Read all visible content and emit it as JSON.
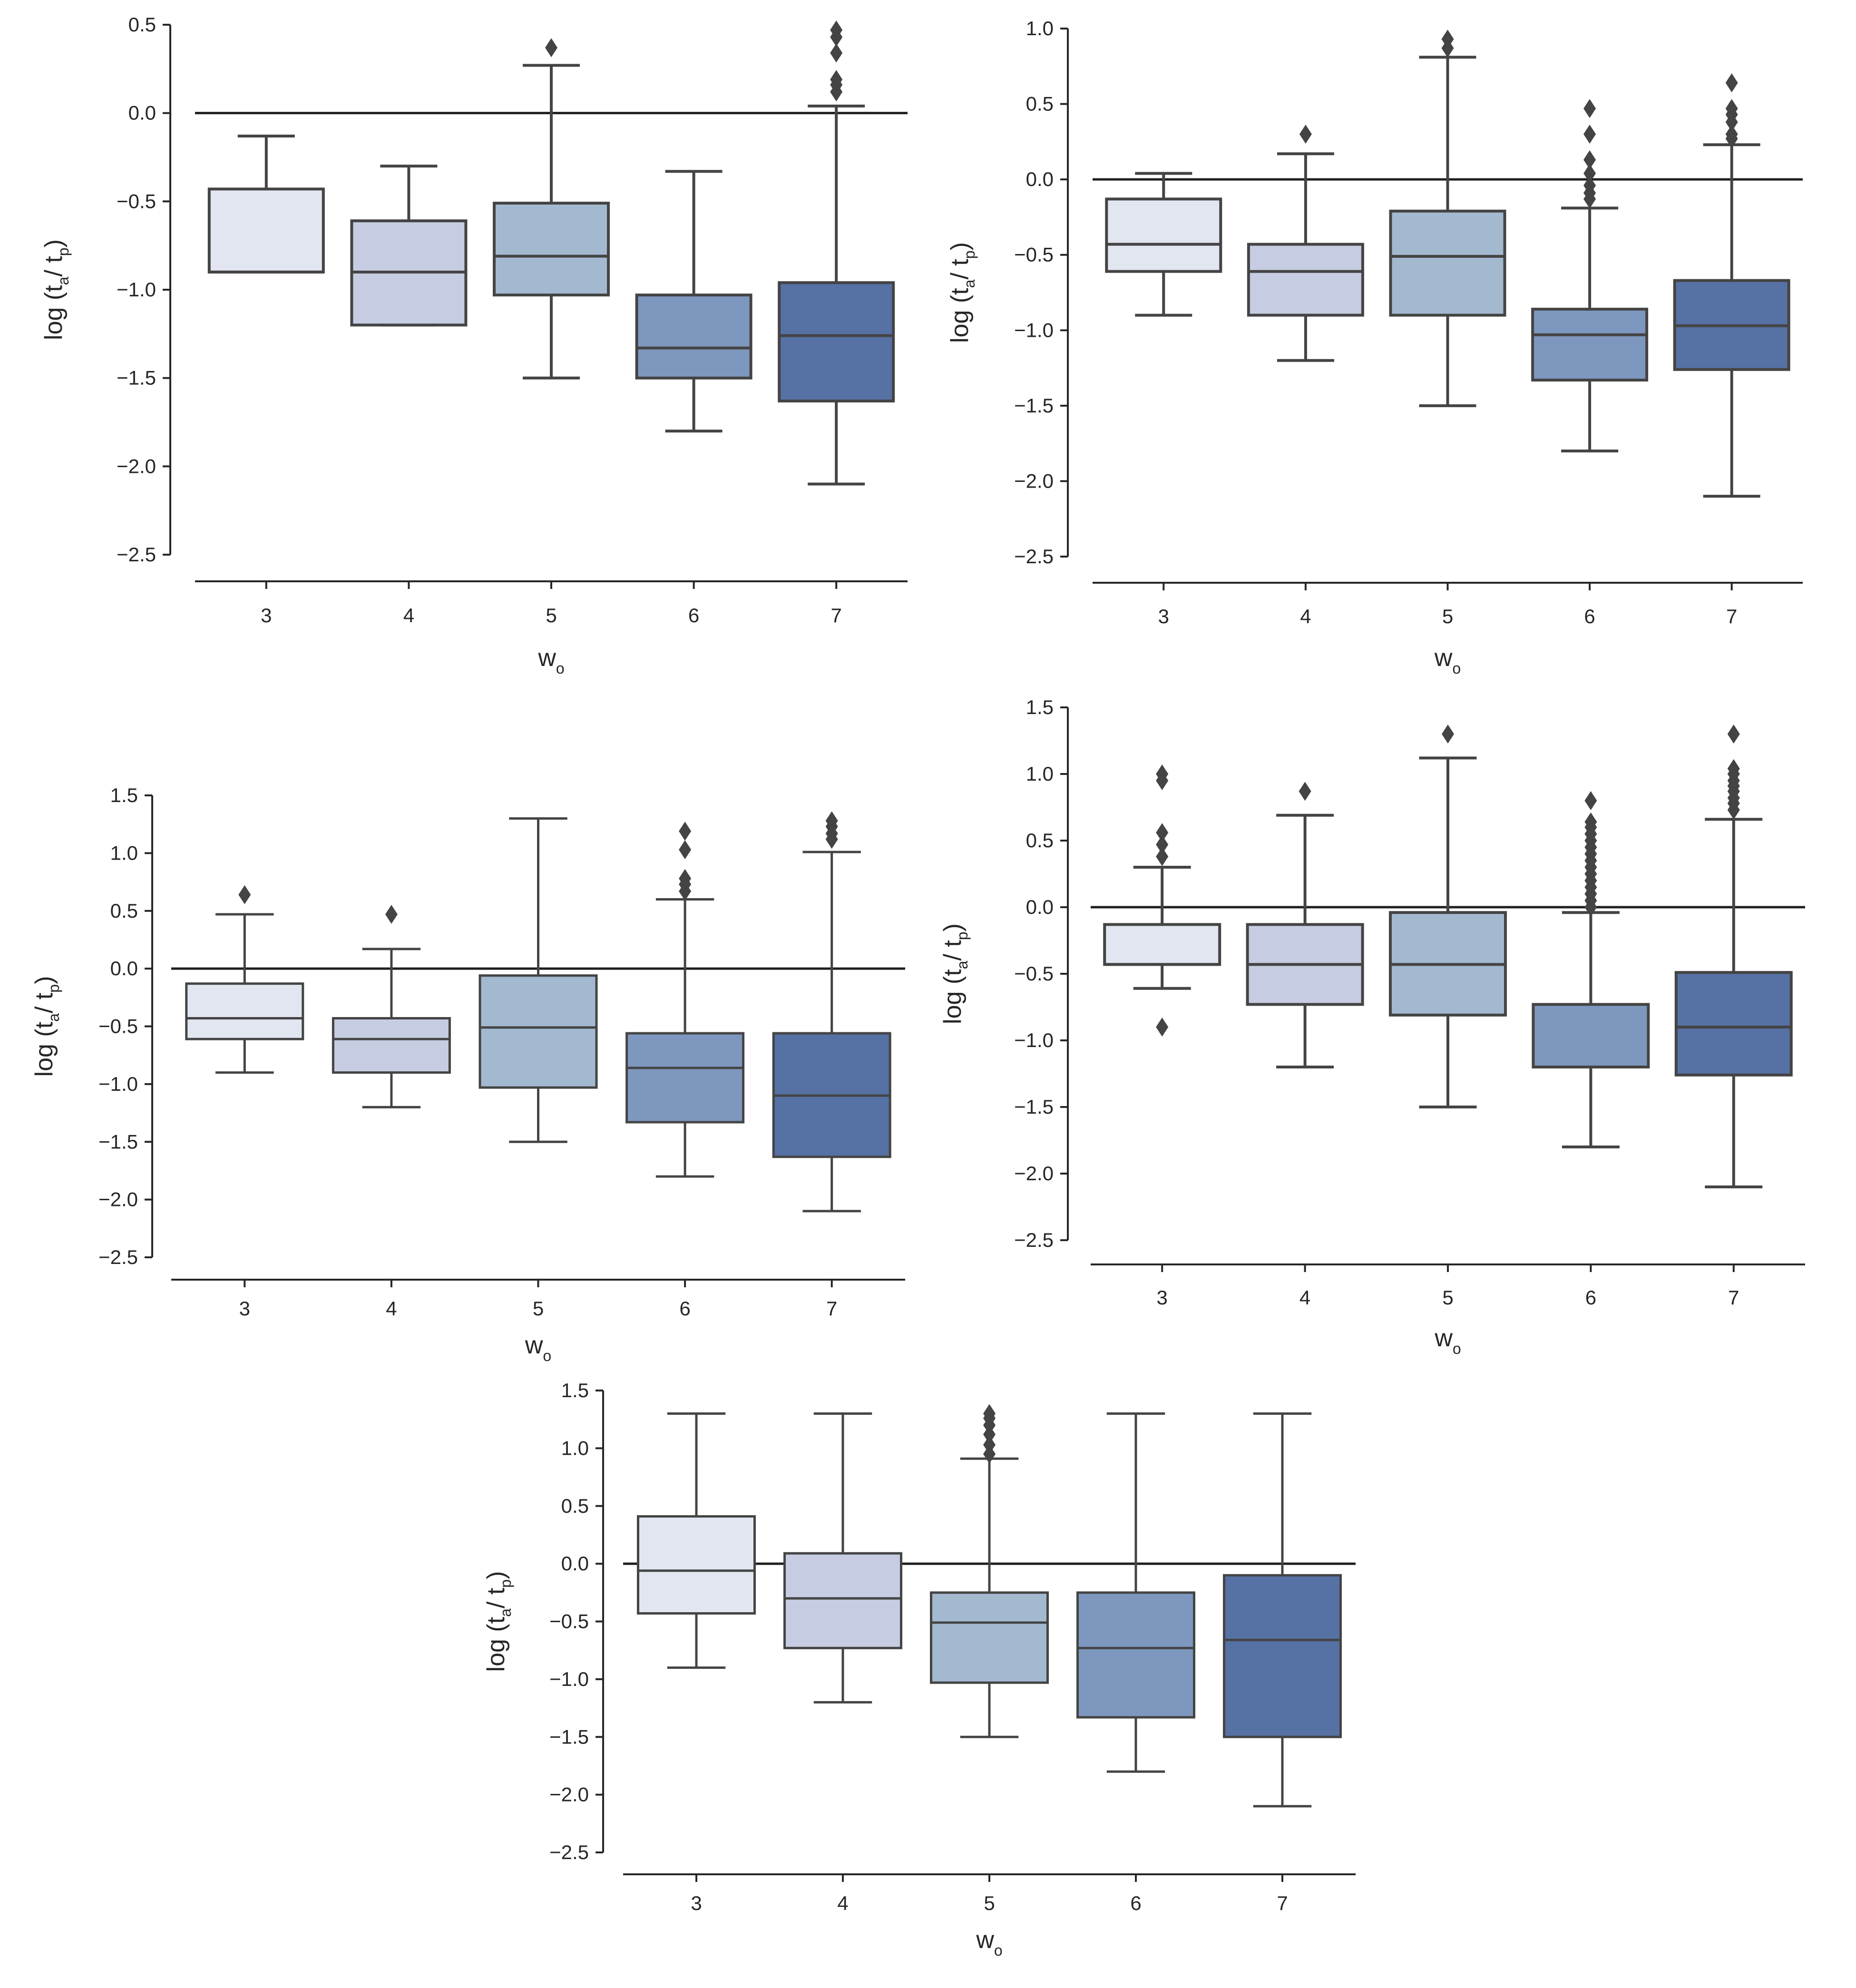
{
  "colors": {
    "boxes": [
      "#e1e6f0",
      "#c6cde2",
      "#a3b9cf",
      "#7e97be",
      "#5671a3"
    ],
    "line": "#444444",
    "outlier": "#444444"
  },
  "chart_data": [
    {
      "type": "box",
      "xlabel": "w",
      "xlabel_sub": "o",
      "ylabel": "log (t",
      "ylabel_sub_a": "a",
      "ylabel_mid": "/ t",
      "ylabel_sub_p": "p",
      "ylabel_end": ")",
      "categories": [
        "3",
        "4",
        "5",
        "6",
        "7"
      ],
      "ylim": [
        -2.5,
        0.5
      ],
      "yticks": [
        0.5,
        0.0,
        -0.5,
        -1.0,
        -1.5,
        -2.0,
        -2.5
      ],
      "ytick_labels": [
        "0.5",
        "0.0",
        "−0.5",
        "−1.0",
        "−1.5",
        "−2.0",
        "−2.5"
      ],
      "reference_line": 0.0,
      "boxes": [
        {
          "category": "3",
          "whislo": -0.9,
          "q1": -0.9,
          "med": -0.9,
          "q3": -0.43,
          "whishi": -0.13,
          "outliers": []
        },
        {
          "category": "4",
          "whislo": -1.2,
          "q1": -1.2,
          "med": -0.9,
          "q3": -0.61,
          "whishi": -0.3,
          "outliers": []
        },
        {
          "category": "5",
          "whislo": -1.5,
          "q1": -1.03,
          "med": -0.81,
          "q3": -0.51,
          "whishi": 0.27,
          "outliers": [
            0.37
          ]
        },
        {
          "category": "6",
          "whislo": -1.8,
          "q1": -1.5,
          "med": -1.33,
          "q3": -1.03,
          "whishi": -0.33,
          "outliers": []
        },
        {
          "category": "7",
          "whislo": -2.1,
          "q1": -1.63,
          "med": -1.26,
          "q3": -0.96,
          "whishi": 0.04,
          "outliers": [
            0.12,
            0.16,
            0.19,
            0.34,
            0.43,
            0.47
          ]
        }
      ]
    },
    {
      "type": "box",
      "xlabel": "w",
      "xlabel_sub": "o",
      "ylabel": "log (t",
      "ylabel_sub_a": "a",
      "ylabel_mid": "/ t",
      "ylabel_sub_p": "p",
      "ylabel_end": ")",
      "categories": [
        "3",
        "4",
        "5",
        "6",
        "7"
      ],
      "ylim": [
        -2.5,
        1.0
      ],
      "yticks": [
        1.0,
        0.5,
        0.0,
        -0.5,
        -1.0,
        -1.5,
        -2.0,
        -2.5
      ],
      "ytick_labels": [
        "1.0",
        "0.5",
        "0.0",
        "−0.5",
        "−1.0",
        "−1.5",
        "−2.0",
        "−2.5"
      ],
      "reference_line": 0.0,
      "boxes": [
        {
          "category": "3",
          "whislo": -0.9,
          "q1": -0.61,
          "med": -0.43,
          "q3": -0.13,
          "whishi": 0.04,
          "outliers": []
        },
        {
          "category": "4",
          "whislo": -1.2,
          "q1": -0.9,
          "med": -0.61,
          "q3": -0.43,
          "whishi": 0.17,
          "outliers": [
            0.3
          ]
        },
        {
          "category": "5",
          "whislo": -1.5,
          "q1": -0.9,
          "med": -0.51,
          "q3": -0.21,
          "whishi": 0.81,
          "outliers": [
            0.87,
            0.93
          ]
        },
        {
          "category": "6",
          "whislo": -1.8,
          "q1": -1.33,
          "med": -1.03,
          "q3": -0.86,
          "whishi": -0.19,
          "outliers": [
            -0.13,
            -0.09,
            -0.04,
            0.04,
            0.13,
            0.3,
            0.47
          ]
        },
        {
          "category": "7",
          "whislo": -2.1,
          "q1": -1.26,
          "med": -0.97,
          "q3": -0.67,
          "whishi": 0.23,
          "outliers": [
            0.27,
            0.3,
            0.38,
            0.43,
            0.47,
            0.64
          ]
        }
      ]
    },
    {
      "type": "box",
      "xlabel": "w",
      "xlabel_sub": "o",
      "ylabel": "log (t",
      "ylabel_sub_a": "a",
      "ylabel_mid": "/ t",
      "ylabel_sub_p": "p",
      "ylabel_end": ")",
      "categories": [
        "3",
        "4",
        "5",
        "6",
        "7"
      ],
      "ylim": [
        -2.5,
        1.5
      ],
      "yticks": [
        1.5,
        1.0,
        0.5,
        0.0,
        -0.5,
        -1.0,
        -1.5,
        -2.0,
        -2.5
      ],
      "ytick_labels": [
        "1.5",
        "1.0",
        "0.5",
        "0.0",
        "−0.5",
        "−1.0",
        "−1.5",
        "−2.0",
        "−2.5"
      ],
      "reference_line": 0.0,
      "boxes": [
        {
          "category": "3",
          "whislo": -0.9,
          "q1": -0.61,
          "med": -0.43,
          "q3": -0.13,
          "whishi": 0.47,
          "outliers": [
            0.64
          ]
        },
        {
          "category": "4",
          "whislo": -1.2,
          "q1": -0.9,
          "med": -0.61,
          "q3": -0.43,
          "whishi": 0.17,
          "outliers": [
            0.47
          ]
        },
        {
          "category": "5",
          "whislo": -1.5,
          "q1": -1.03,
          "med": -0.51,
          "q3": -0.06,
          "whishi": 1.3,
          "outliers": []
        },
        {
          "category": "6",
          "whislo": -1.8,
          "q1": -1.33,
          "med": -0.86,
          "q3": -0.56,
          "whishi": 0.6,
          "outliers": [
            0.67,
            0.73,
            0.78,
            1.03,
            1.19
          ]
        },
        {
          "category": "7",
          "whislo": -2.1,
          "q1": -1.63,
          "med": -1.1,
          "q3": -0.56,
          "whishi": 1.01,
          "outliers": [
            1.12,
            1.17,
            1.23,
            1.28
          ]
        }
      ]
    },
    {
      "type": "box",
      "xlabel": "w",
      "xlabel_sub": "o",
      "ylabel": "log (t",
      "ylabel_sub_a": "a",
      "ylabel_mid": "/ t",
      "ylabel_sub_p": "p",
      "ylabel_end": ")",
      "categories": [
        "3",
        "4",
        "5",
        "6",
        "7"
      ],
      "ylim": [
        -2.5,
        1.5
      ],
      "yticks": [
        1.5,
        1.0,
        0.5,
        0.0,
        -0.5,
        -1.0,
        -1.5,
        -2.0,
        -2.5
      ],
      "ytick_labels": [
        "1.5",
        "1.0",
        "0.5",
        "0.0",
        "−0.5",
        "−1.0",
        "−1.5",
        "−2.0",
        "−2.5"
      ],
      "reference_line": 0.0,
      "boxes": [
        {
          "category": "3",
          "whislo": -0.61,
          "q1": -0.43,
          "med": -0.43,
          "q3": -0.13,
          "whishi": 0.3,
          "outliers": [
            -0.9,
            0.38,
            0.47,
            0.56,
            0.95,
            1.0
          ]
        },
        {
          "category": "4",
          "whislo": -1.2,
          "q1": -0.73,
          "med": -0.43,
          "q3": -0.13,
          "whishi": 0.69,
          "outliers": [
            0.87
          ]
        },
        {
          "category": "5",
          "whislo": -1.5,
          "q1": -0.81,
          "med": -0.43,
          "q3": -0.04,
          "whishi": 1.12,
          "outliers": [
            1.3
          ]
        },
        {
          "category": "6",
          "whislo": -1.8,
          "q1": -1.2,
          "med": -1.2,
          "q3": -0.73,
          "whishi": -0.04,
          "outliers": [
            0.0,
            0.05,
            0.1,
            0.15,
            0.2,
            0.25,
            0.3,
            0.35,
            0.4,
            0.45,
            0.5,
            0.55,
            0.6,
            0.64,
            0.8
          ]
        },
        {
          "category": "7",
          "whislo": -2.1,
          "q1": -1.26,
          "med": -0.9,
          "q3": -0.49,
          "whishi": 0.66,
          "outliers": [
            0.73,
            0.78,
            0.82,
            0.87,
            0.91,
            0.95,
            1.0,
            1.04,
            1.3
          ]
        }
      ]
    },
    {
      "type": "box",
      "xlabel": "w",
      "xlabel_sub": "o",
      "ylabel": "log (t",
      "ylabel_sub_a": "a",
      "ylabel_mid": "/ t",
      "ylabel_sub_p": "p",
      "ylabel_end": ")",
      "categories": [
        "3",
        "4",
        "5",
        "6",
        "7"
      ],
      "ylim": [
        -2.5,
        1.5
      ],
      "yticks": [
        1.5,
        1.0,
        0.5,
        0.0,
        -0.5,
        -1.0,
        -1.5,
        -2.0,
        -2.5
      ],
      "ytick_labels": [
        "1.5",
        "1.0",
        "0.5",
        "0.0",
        "−0.5",
        "−1.0",
        "−1.5",
        "−2.0",
        "−2.5"
      ],
      "reference_line": 0.0,
      "boxes": [
        {
          "category": "3",
          "whislo": -0.9,
          "q1": -0.43,
          "med": -0.06,
          "q3": 0.41,
          "whishi": 1.3,
          "outliers": []
        },
        {
          "category": "4",
          "whislo": -1.2,
          "q1": -0.73,
          "med": -0.3,
          "q3": 0.09,
          "whishi": 1.3,
          "outliers": []
        },
        {
          "category": "5",
          "whislo": -1.5,
          "q1": -1.03,
          "med": -0.51,
          "q3": -0.25,
          "whishi": 0.91,
          "outliers": [
            0.95,
            1.03,
            1.12,
            1.2,
            1.26,
            1.3
          ]
        },
        {
          "category": "6",
          "whislo": -1.8,
          "q1": -1.33,
          "med": -0.73,
          "q3": -0.25,
          "whishi": 1.3,
          "outliers": []
        },
        {
          "category": "7",
          "whislo": -2.1,
          "q1": -1.5,
          "med": -0.66,
          "q3": -0.1,
          "whishi": 1.3,
          "outliers": []
        }
      ]
    }
  ]
}
